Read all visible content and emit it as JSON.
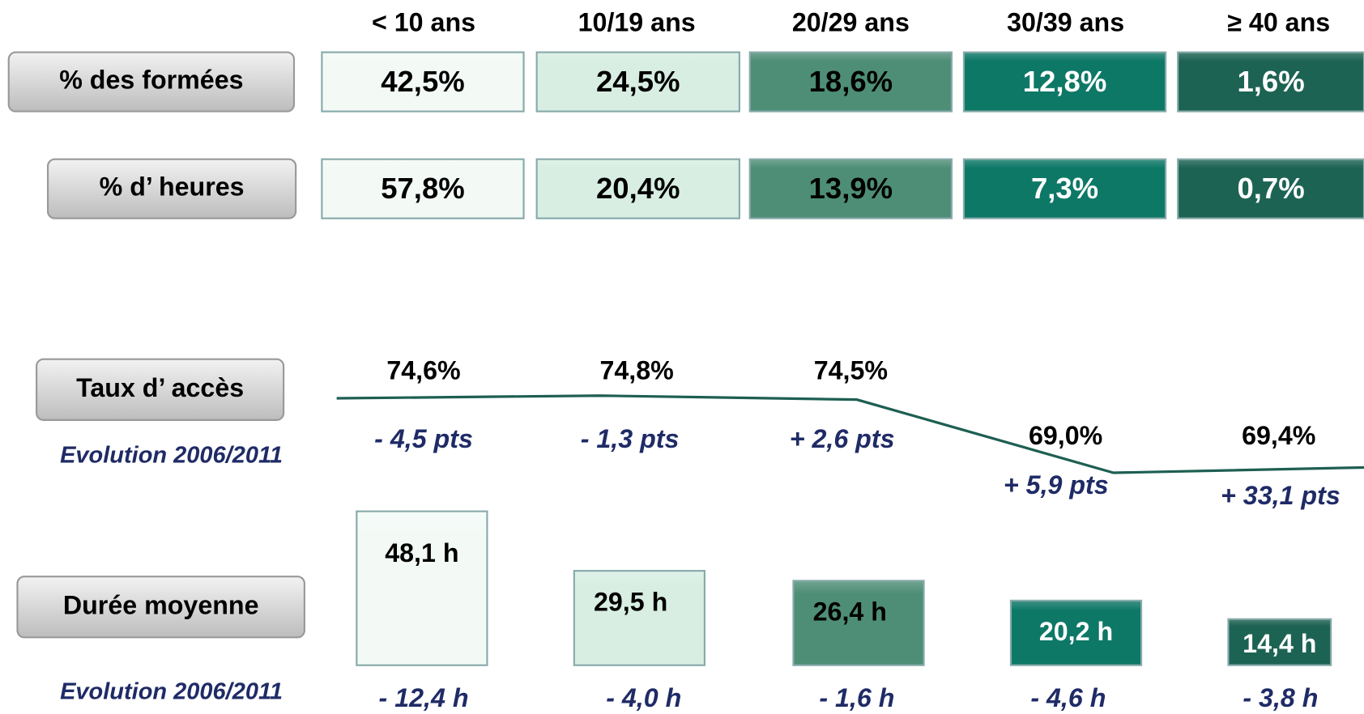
{
  "columns": [
    "< 10 ans",
    "10/19 ans",
    "20/29 ans",
    "30/39 ans",
    "≥ 40 ans"
  ],
  "rows": [
    {
      "label": "% des formées",
      "values": [
        "42,5%",
        "24,5%",
        "18,6%",
        "12,8%",
        "1,6%"
      ]
    },
    {
      "label": "% d’ heures",
      "values": [
        "57,8%",
        "20,4%",
        "13,9%",
        "7,3%",
        "0,7%"
      ]
    }
  ],
  "taux": {
    "label": "Taux d’ accès",
    "values": [
      74.6,
      74.8,
      74.5,
      69.0,
      69.4
    ],
    "value_labels": [
      "74,6%",
      "74,8%",
      "74,5%",
      "69,0%",
      "69,4%"
    ],
    "color": "#1e5f52"
  },
  "evolution_taux": {
    "label": "Evolution 2006/2011",
    "values": [
      "- 4,5 pts",
      "- 1,3 pts",
      "+ 2,6 pts",
      "+ 5,9 pts",
      "+ 33,1 pts"
    ]
  },
  "duree": {
    "label": "Durée moyenne",
    "values": [
      48.1,
      29.5,
      26.4,
      20.2,
      14.4
    ],
    "value_labels": [
      "48,1 h",
      "29,5 h",
      "26,4 h",
      "20,2 h",
      "14,4 h"
    ]
  },
  "evolution_duree": {
    "label": "Evolution 2006/2011",
    "values": [
      "- 12,4 h",
      "- 4,0 h",
      "- 1,6 h",
      "- 4,6 h",
      "- 3,8 h"
    ]
  },
  "colors": [
    "#f3faf6",
    "#d8eee3",
    "#4e8e77",
    "#0e7867",
    "#1d6353"
  ]
}
